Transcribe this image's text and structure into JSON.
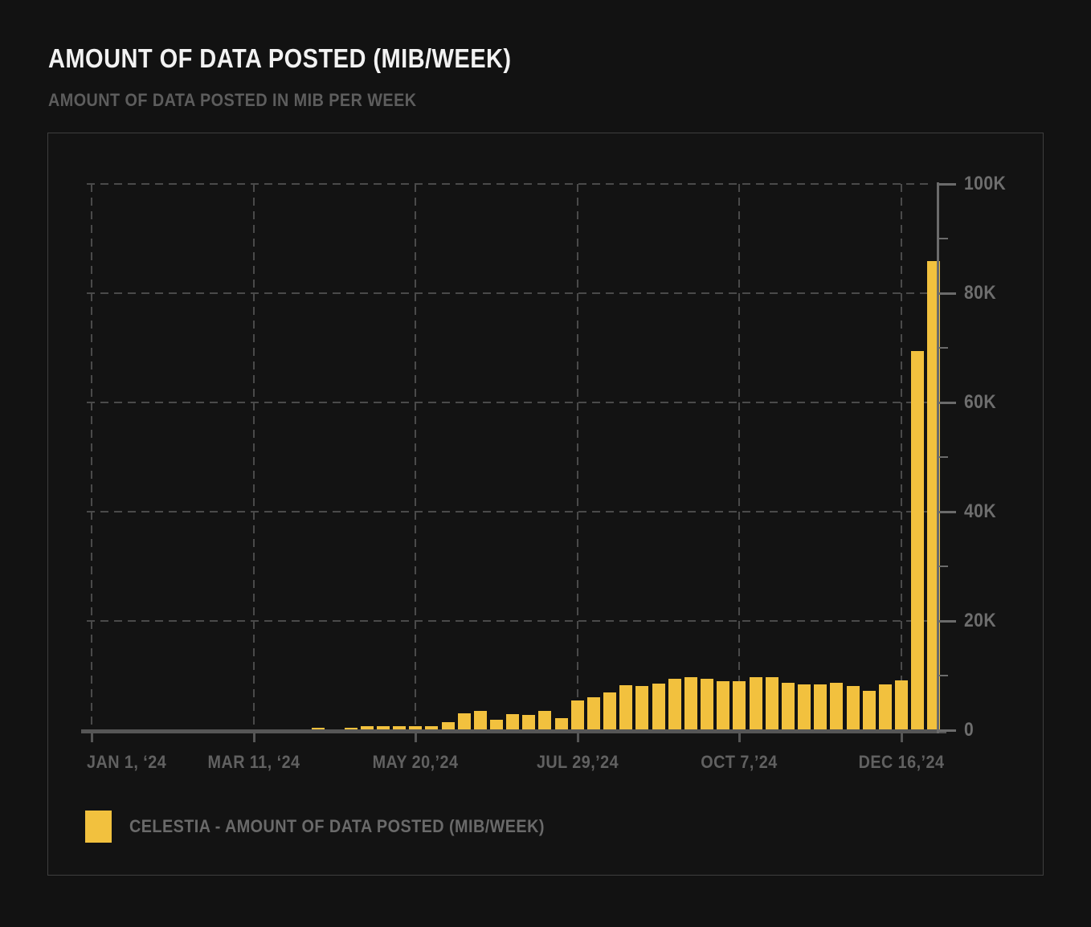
{
  "header": {
    "title": "AMOUNT OF DATA POSTED (MIB/WEEK)",
    "subtitle": "AMOUNT OF DATA POSTED IN MIB PER WEEK"
  },
  "legend": {
    "items": [
      {
        "label": "CELESTIA - AMOUNT OF DATA POSTED (MIB/WEEK)",
        "color": "#f2c13e"
      }
    ]
  },
  "colors": {
    "bar": "#f2c13e",
    "background": "#121212",
    "card_border": "#3e3e3e",
    "grid": "#4a4a4a",
    "axis": "#6b6b6b",
    "tick_label": "#6e6e6e",
    "title": "#f2f2f2",
    "subtitle": "#5d5d5d"
  },
  "chart_data": {
    "type": "bar",
    "title": "AMOUNT OF DATA POSTED (MIB/WEEK)",
    "subtitle": "AMOUNT OF DATA POSTED IN MIB PER WEEK",
    "series_name": "Celestia - Amount of data posted (MiB/week)",
    "x_unit": "week_start_date",
    "x": [
      "2024-01-01",
      "2024-01-08",
      "2024-01-15",
      "2024-01-22",
      "2024-01-29",
      "2024-02-05",
      "2024-02-12",
      "2024-02-19",
      "2024-02-26",
      "2024-03-04",
      "2024-03-11",
      "2024-03-18",
      "2024-03-25",
      "2024-04-01",
      "2024-04-08",
      "2024-04-15",
      "2024-04-22",
      "2024-04-29",
      "2024-05-06",
      "2024-05-13",
      "2024-05-20",
      "2024-05-27",
      "2024-06-03",
      "2024-06-10",
      "2024-06-17",
      "2024-06-24",
      "2024-07-01",
      "2024-07-08",
      "2024-07-15",
      "2024-07-22",
      "2024-07-29",
      "2024-08-05",
      "2024-08-12",
      "2024-08-19",
      "2024-08-26",
      "2024-09-02",
      "2024-09-09",
      "2024-09-16",
      "2024-09-23",
      "2024-09-30",
      "2024-10-07",
      "2024-10-14",
      "2024-10-21",
      "2024-10-28",
      "2024-11-04",
      "2024-11-11",
      "2024-11-18",
      "2024-11-25",
      "2024-12-02",
      "2024-12-09",
      "2024-12-16",
      "2024-12-23",
      "2024-12-30"
    ],
    "values": [
      0,
      0,
      0,
      0,
      0,
      0,
      0,
      0,
      0,
      0,
      0,
      0,
      0,
      0,
      300,
      50,
      250,
      550,
      550,
      550,
      600,
      550,
      1300,
      3000,
      3400,
      1800,
      2800,
      2700,
      3400,
      2100,
      5300,
      5900,
      6800,
      8100,
      7900,
      8400,
      9200,
      9600,
      9300,
      8900,
      8900,
      9500,
      9600,
      8600,
      8300,
      8300,
      8600,
      7900,
      7100,
      8300,
      9000,
      69300,
      85800
    ],
    "ylim": [
      0,
      100000
    ],
    "yticks": [
      {
        "value": 0,
        "label": "0"
      },
      {
        "value": 20000,
        "label": "20K"
      },
      {
        "value": 40000,
        "label": "40K"
      },
      {
        "value": 60000,
        "label": "60K"
      },
      {
        "value": 80000,
        "label": "80K"
      },
      {
        "value": 100000,
        "label": "100K"
      }
    ],
    "y_minor_ticks": [
      10000,
      30000,
      50000,
      70000,
      90000
    ],
    "xticks": [
      {
        "week": 0,
        "label": "JAN 1, ‘24",
        "align": "left"
      },
      {
        "week": 10,
        "label": "MAR 11, ‘24",
        "align": "center"
      },
      {
        "week": 20,
        "label": "MAY 20,’24",
        "align": "center"
      },
      {
        "week": 30,
        "label": "JUL 29,’24",
        "align": "center"
      },
      {
        "week": 40,
        "label": "OCT 7,’24",
        "align": "center"
      },
      {
        "week": 50,
        "label": "DEC 16,’24",
        "align": "center"
      }
    ],
    "grid": "dashed",
    "legend_position": "bottom-left"
  }
}
